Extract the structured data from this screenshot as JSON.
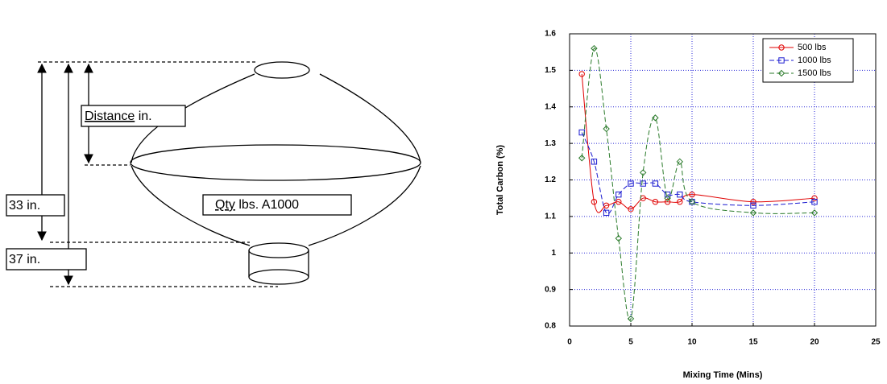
{
  "diagram": {
    "distance_label": [
      "Distance",
      "in."
    ],
    "qty_label": [
      "Qty",
      "lbs. A1000"
    ],
    "height_33": "33 in.",
    "height_37": "37 in."
  },
  "chart_data": {
    "type": "scatter",
    "x_label": "Mixing Time (Mins)",
    "y_label": "Total Carbon (%)",
    "x": [
      1,
      2,
      3,
      4,
      5,
      6,
      7,
      8,
      9,
      10,
      15,
      20
    ],
    "series": [
      {
        "name": "500 lbs",
        "color": "#e00000",
        "marker": "circle",
        "line_style": "solid",
        "values": [
          1.49,
          1.14,
          1.13,
          1.14,
          1.12,
          1.15,
          1.14,
          1.14,
          1.14,
          1.16,
          1.14,
          1.15
        ]
      },
      {
        "name": "1000 lbs",
        "color": "#1a1ad0",
        "marker": "square",
        "line_style": "dashed",
        "values": [
          1.33,
          1.25,
          1.11,
          1.16,
          1.19,
          1.19,
          1.19,
          1.16,
          1.16,
          1.14,
          1.13,
          1.14
        ]
      },
      {
        "name": "1500 lbs",
        "color": "#2a7a2a",
        "marker": "diamond",
        "line_style": "dashed",
        "values": [
          1.26,
          1.56,
          1.34,
          1.04,
          0.82,
          1.22,
          1.37,
          1.15,
          1.25,
          1.14,
          1.11,
          1.11
        ]
      }
    ],
    "xlim": [
      0,
      25
    ],
    "xticks": [
      0,
      5,
      10,
      15,
      20,
      25
    ],
    "ylim": [
      0.8,
      1.6
    ],
    "yticks": [
      0.8,
      0.9,
      1,
      1.1,
      1.2,
      1.3,
      1.4,
      1.5,
      1.6
    ],
    "grid": true,
    "legend": "upper right"
  }
}
